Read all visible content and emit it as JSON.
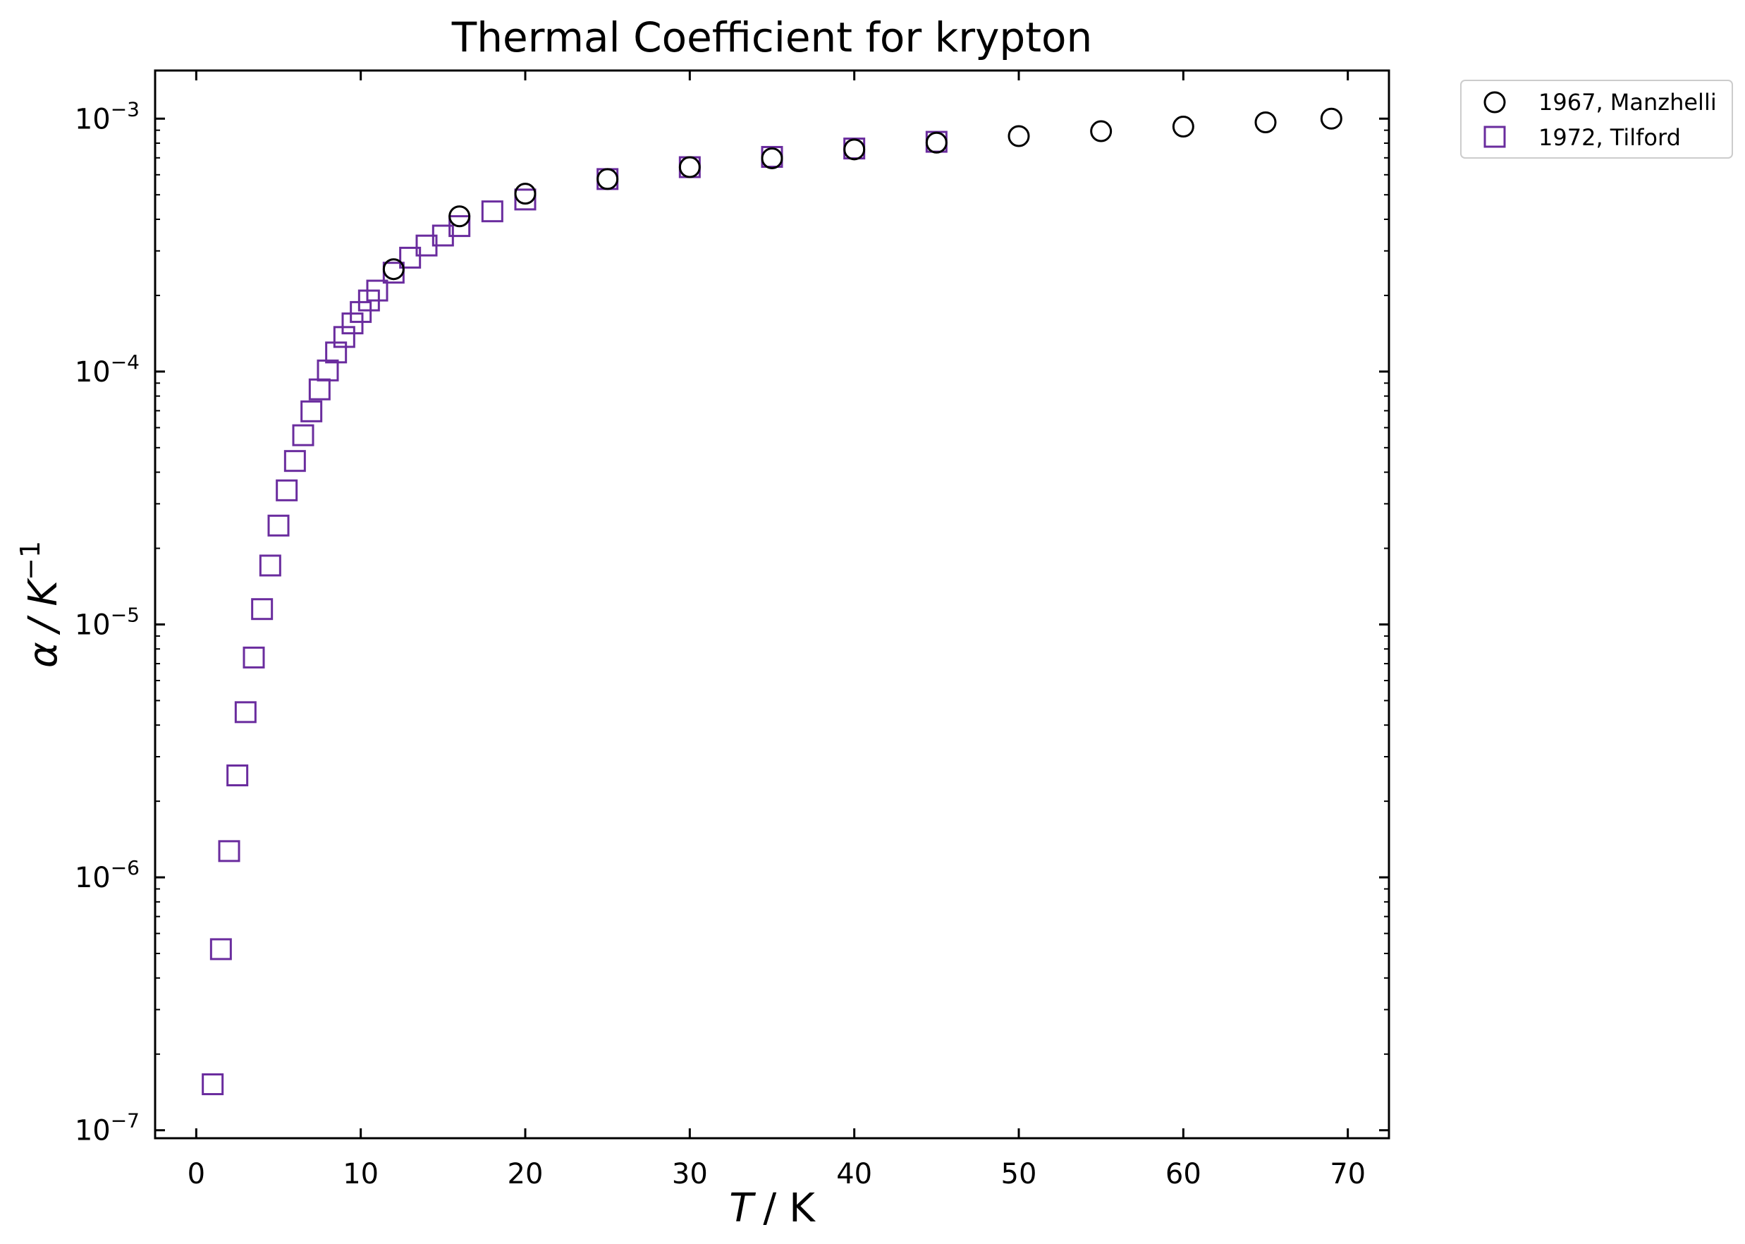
{
  "chart_data": {
    "type": "scatter",
    "title": "Thermal Coefficient for krypton",
    "xlabel": "T / K",
    "xlabel_var": "T",
    "xlabel_unit": "/ K",
    "ylabel": "α / K⁻¹",
    "ylabel_var": "α",
    "ylabel_unit": "/ K",
    "ylabel_exp": "−1",
    "yscale": "log",
    "xlim": [
      -2.5,
      72.5
    ],
    "ylim": [
      9.3e-08,
      0.00155
    ],
    "xticks": [
      0,
      10,
      20,
      30,
      40,
      50,
      60,
      70
    ],
    "xtick_labels": [
      "0",
      "10",
      "20",
      "30",
      "40",
      "50",
      "60",
      "70"
    ],
    "yticks": [
      1e-07,
      1e-06,
      1e-05,
      0.0001,
      0.001
    ],
    "ytick_labels": [
      {
        "base": "10",
        "exp": "−7"
      },
      {
        "base": "10",
        "exp": "−6"
      },
      {
        "base": "10",
        "exp": "−5"
      },
      {
        "base": "10",
        "exp": "−4"
      },
      {
        "base": "10",
        "exp": "−3"
      }
    ],
    "grid": false,
    "legend_position": "outside-top-right",
    "series": [
      {
        "name": "1967, Manzhelli",
        "marker": "circle",
        "color": "#000000",
        "x": [
          12,
          16,
          20,
          25,
          30,
          35,
          40,
          45,
          50,
          55,
          60,
          65,
          69
        ],
        "y": [
          0.000254,
          0.000411,
          0.000505,
          0.000577,
          0.000643,
          0.000697,
          0.000756,
          0.000804,
          0.000853,
          0.000892,
          0.00093,
          0.000967,
          0.001
        ]
      },
      {
        "name": "1972, Tilford",
        "marker": "square",
        "color": "#6a2c9e",
        "x": [
          1,
          1.5,
          2,
          2.5,
          3,
          3.5,
          4,
          4.5,
          5,
          5.5,
          6,
          6.5,
          7,
          7.5,
          8,
          8.5,
          9,
          9.5,
          10,
          10.5,
          11,
          12,
          13,
          14,
          15,
          16,
          18,
          20,
          25,
          30,
          35,
          40,
          45
        ],
        "y": [
          1.52e-07,
          5.2e-07,
          1.27e-06,
          2.53e-06,
          4.5e-06,
          7.4e-06,
          1.15e-05,
          1.71e-05,
          2.46e-05,
          3.39e-05,
          4.43e-05,
          5.6e-05,
          6.96e-05,
          8.5e-05,
          0.000101,
          0.000119,
          0.000137,
          0.000155,
          0.000172,
          0.000191,
          0.000209,
          0.000246,
          0.000282,
          0.000315,
          0.000345,
          0.000376,
          0.00043,
          0.000479,
          0.000577,
          0.000643,
          0.000706,
          0.000762,
          0.00081
        ]
      }
    ]
  }
}
